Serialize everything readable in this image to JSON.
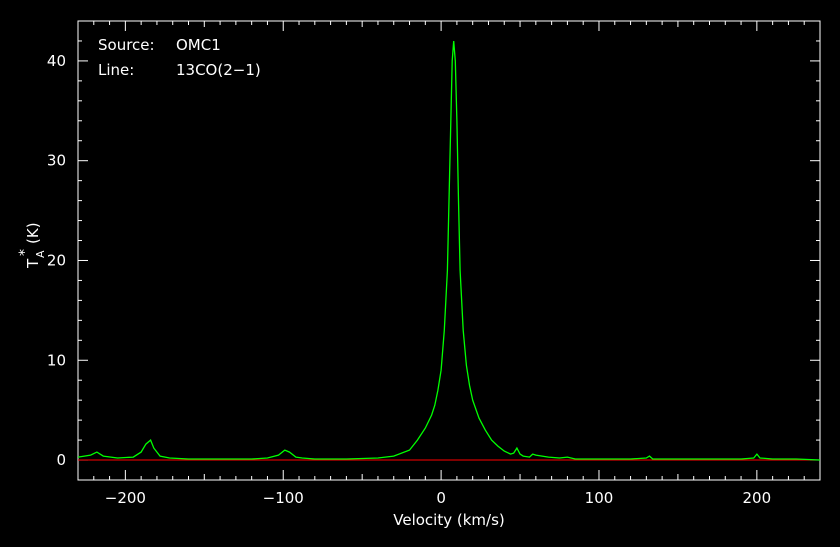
{
  "chart_data": {
    "type": "line",
    "source_label": "Source:",
    "source_value": "OMC1",
    "line_label": "Line:",
    "line_value": "13CO(2−1)",
    "xlabel": "Velocity (km/s)",
    "ylabel_main": "T",
    "ylabel_sub": "A",
    "ylabel_sup": "*",
    "ylabel_unit": "(K)",
    "xlim": [
      -230,
      240
    ],
    "ylim": [
      -2,
      44
    ],
    "xticks": [
      -200,
      -100,
      0,
      100,
      200
    ],
    "xtick_labels": [
      "−200",
      "−100",
      "0",
      "100",
      "200"
    ],
    "yticks": [
      0,
      10,
      20,
      30,
      40
    ],
    "ytick_labels": [
      "0",
      "10",
      "20",
      "30",
      "40"
    ],
    "grid": false,
    "colors": {
      "spectrum": "#00ff00",
      "baseline": "#ff0000",
      "axes": "#ffffff",
      "background": "#000000"
    },
    "baseline_y": 0,
    "series": [
      {
        "x": [
          -230,
          -222,
          -218,
          -214,
          -205,
          -195,
          -190,
          -187,
          -184,
          -182,
          -178,
          -172,
          -160,
          -140,
          -120,
          -110,
          -103,
          -99,
          -96,
          -92,
          -88,
          -80,
          -60,
          -40,
          -30,
          -20,
          -15,
          -10,
          -6,
          -4,
          -2,
          0,
          2,
          4,
          5,
          6,
          7,
          8,
          9,
          10,
          11,
          12,
          14,
          16,
          18,
          20,
          24,
          28,
          32,
          36,
          40,
          44,
          46,
          48,
          50,
          52,
          56,
          58,
          60,
          64,
          68,
          75,
          80,
          85,
          100,
          120,
          130,
          132,
          134,
          140,
          150,
          170,
          190,
          198,
          200,
          202,
          210,
          225,
          240
        ],
        "y": [
          0.3,
          0.5,
          0.8,
          0.4,
          0.2,
          0.3,
          0.8,
          1.6,
          2.0,
          1.2,
          0.4,
          0.2,
          0.1,
          0.1,
          0.1,
          0.2,
          0.5,
          1.0,
          0.8,
          0.3,
          0.2,
          0.1,
          0.1,
          0.2,
          0.4,
          1.0,
          2.0,
          3.2,
          4.5,
          5.5,
          7.0,
          9.0,
          13.0,
          19.0,
          26.0,
          33.0,
          40.0,
          42.0,
          40.0,
          34.0,
          26.0,
          19.0,
          13.0,
          9.5,
          7.5,
          6.0,
          4.2,
          3.0,
          2.0,
          1.4,
          0.9,
          0.6,
          0.7,
          1.2,
          0.6,
          0.4,
          0.3,
          0.6,
          0.5,
          0.4,
          0.3,
          0.2,
          0.3,
          0.1,
          0.1,
          0.1,
          0.2,
          0.4,
          0.1,
          0.1,
          0.1,
          0.1,
          0.1,
          0.2,
          0.6,
          0.2,
          0.1,
          0.1,
          0.0
        ]
      }
    ]
  }
}
